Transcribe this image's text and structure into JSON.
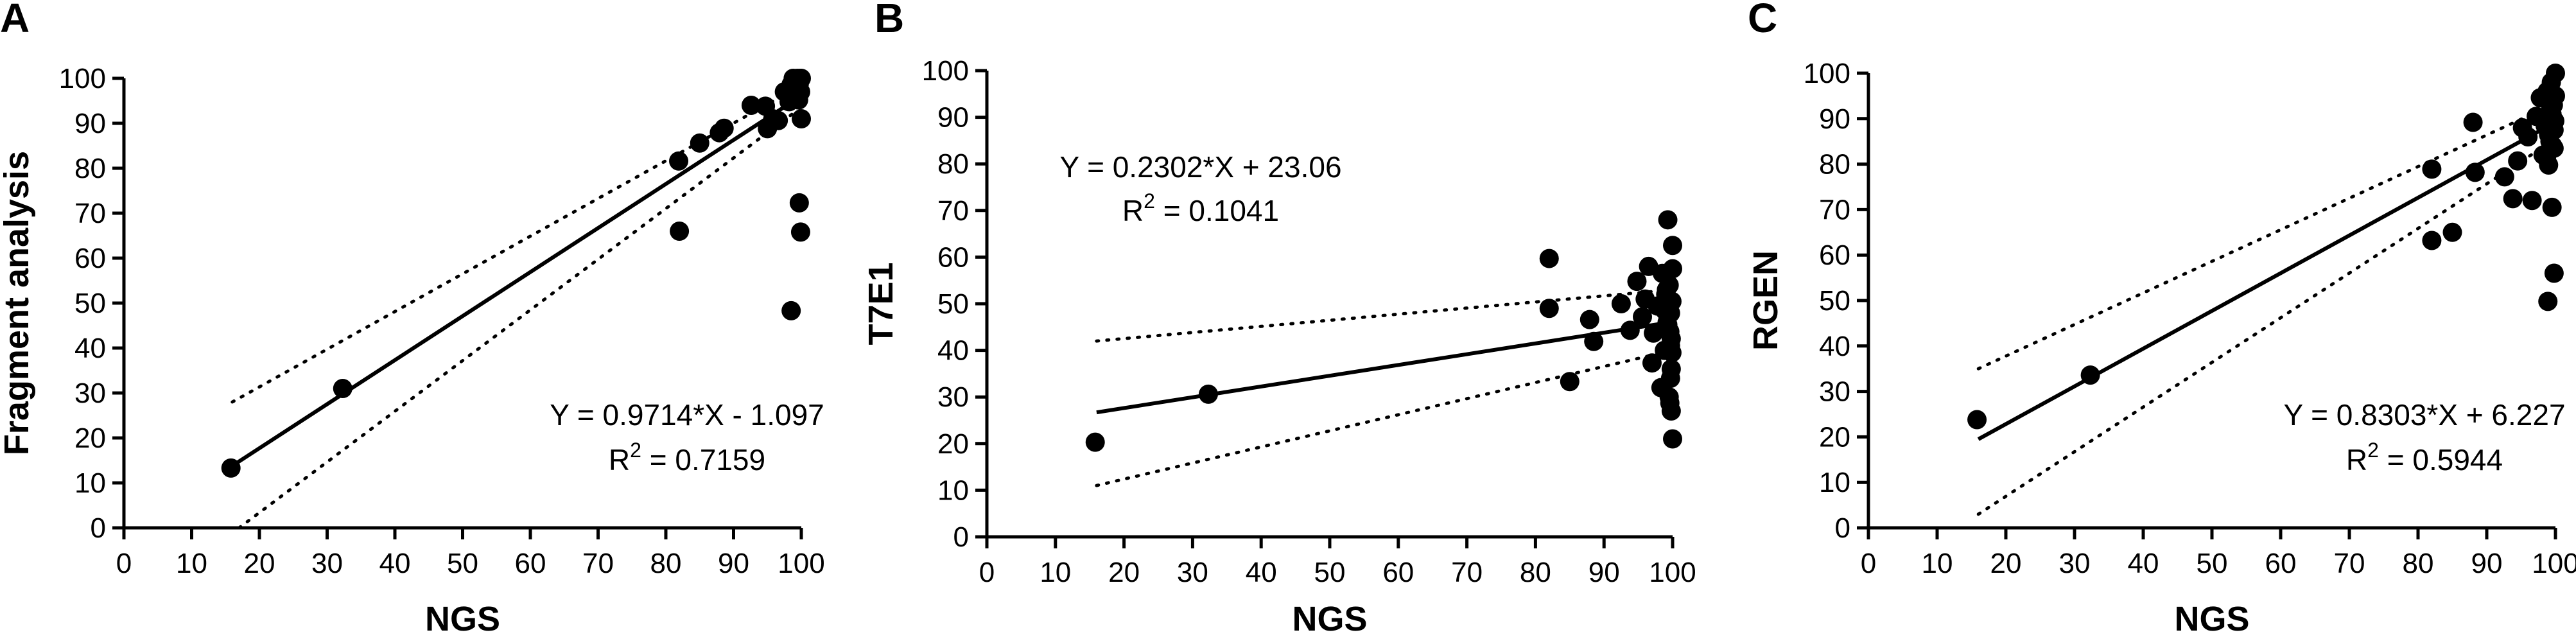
{
  "chart_data": [
    {
      "type": "scatter",
      "panel_label": "A",
      "title": "",
      "xlabel": "NGS",
      "ylabel": "Fragment analysis",
      "xlim": [
        0,
        100
      ],
      "ylim": [
        0,
        100
      ],
      "x_ticks": [
        0,
        10,
        20,
        30,
        40,
        50,
        60,
        70,
        80,
        90,
        100
      ],
      "y_ticks": [
        0,
        10,
        20,
        30,
        40,
        50,
        60,
        70,
        80,
        90,
        100
      ],
      "grid": false,
      "equation": "Y = 0.9714*X - 1.097",
      "r2_prefix": "R",
      "r2_sup": "2",
      "r2_value": " = 0.7159",
      "fit": {
        "x": [
          16,
          99.5
        ],
        "y": [
          13.8,
          95.6
        ]
      },
      "ci_upper": {
        "x": [
          16,
          99.5
        ],
        "y": [
          28,
          98
        ]
      },
      "ci_lower": {
        "x": [
          17,
          99.5
        ],
        "y": [
          0,
          93
        ]
      },
      "points": {
        "x": [
          15.8,
          32.3,
          81.9,
          82.0,
          85.0,
          87.9,
          88.6,
          92.6,
          94.7,
          95.0,
          95.8,
          96.6,
          97.5,
          98.2,
          98.5,
          98.8,
          99.0,
          99.1,
          99.3,
          99.4,
          99.6,
          99.7,
          99.8,
          99.9,
          100.0,
          100.0,
          99.7,
          99.9,
          98.5
        ],
        "y": [
          13.3,
          31.0,
          81.6,
          66.0,
          85.6,
          87.9,
          88.9,
          94.0,
          93.8,
          88.8,
          91.0,
          90.6,
          97.0,
          94.8,
          98.6,
          100.0,
          96.2,
          99.5,
          97.8,
          100.0,
          95.2,
          98.8,
          100.0,
          97.0,
          100.0,
          91.0,
          72.3,
          65.8,
          48.3
        ]
      }
    },
    {
      "type": "scatter",
      "panel_label": "B",
      "title": "",
      "xlabel": "NGS",
      "ylabel": "T7E1",
      "xlim": [
        0,
        100
      ],
      "ylim": [
        0,
        100
      ],
      "x_ticks": [
        0,
        10,
        20,
        30,
        40,
        50,
        60,
        70,
        80,
        90,
        100
      ],
      "y_ticks": [
        0,
        10,
        20,
        30,
        40,
        50,
        60,
        70,
        80,
        90,
        100
      ],
      "grid": false,
      "equation": "Y = 0.2302*X + 23.06",
      "r2_prefix": "R",
      "r2_sup": "2",
      "r2_value": " = 0.1041",
      "fit": {
        "x": [
          16,
          100
        ],
        "y": [
          26.7,
          46.1
        ]
      },
      "ci_upper": {
        "x": [
          16,
          100
        ],
        "y": [
          42,
          53
        ]
      },
      "ci_lower": {
        "x": [
          16,
          100
        ],
        "y": [
          11,
          40
        ]
      },
      "points": {
        "x": [
          15.8,
          32.3,
          82.0,
          82.0,
          85.0,
          87.9,
          88.5,
          92.5,
          93.8,
          94.8,
          95.6,
          96.0,
          96.5,
          97.0,
          97.2,
          97.8,
          98.3,
          98.5,
          98.8,
          99.0,
          99.2,
          99.3,
          99.5,
          99.6,
          99.7,
          99.8,
          99.9,
          100.0,
          100.0,
          99.9,
          99.8,
          99.7,
          99.5,
          99.3,
          99.1,
          98.9,
          99.6,
          99.8,
          100.0,
          99.7
        ],
        "y": [
          20.3,
          30.6,
          59.7,
          49.0,
          33.3,
          46.6,
          41.9,
          50.0,
          44.3,
          54.8,
          47.2,
          51.0,
          58.0,
          37.3,
          43.7,
          49.5,
          32.0,
          56.5,
          40.0,
          52.0,
          46.0,
          68.0,
          54.0,
          44.0,
          48.0,
          36.0,
          39.5,
          62.5,
          57.5,
          50.5,
          42.5,
          34.0,
          30.0,
          45.5,
          53.0,
          48.5,
          28.7,
          27.0,
          21.0,
          41.0
        ]
      }
    },
    {
      "type": "scatter",
      "panel_label": "C",
      "title": "",
      "xlabel": "NGS",
      "ylabel": "RGEN",
      "xlim": [
        0,
        100
      ],
      "ylim": [
        0,
        100
      ],
      "x_ticks": [
        0,
        10,
        20,
        30,
        40,
        50,
        60,
        70,
        80,
        90,
        100
      ],
      "y_ticks": [
        0,
        10,
        20,
        30,
        40,
        50,
        60,
        70,
        80,
        90,
        100
      ],
      "grid": false,
      "equation": "Y = 0.8303*X + 6.227",
      "r2_prefix": "R",
      "r2_sup": "2",
      "r2_value": " = 0.5944",
      "fit": {
        "x": [
          16,
          99.5
        ],
        "y": [
          19.5,
          88.8
        ]
      },
      "ci_upper": {
        "x": [
          16,
          99.5
        ],
        "y": [
          35,
          93
        ]
      },
      "ci_lower": {
        "x": [
          16,
          99.5
        ],
        "y": [
          3,
          85
        ]
      },
      "points": {
        "x": [
          15.8,
          32.3,
          82.0,
          82.0,
          85.0,
          88.0,
          88.3,
          92.6,
          93.8,
          94.5,
          95.2,
          96.0,
          96.6,
          97.2,
          97.8,
          98.2,
          98.5,
          98.8,
          99.0,
          99.2,
          99.4,
          99.5,
          99.7,
          99.8,
          100.0,
          100.0,
          99.9,
          99.8,
          99.6,
          99.3,
          99.0,
          98.7,
          99.5,
          99.8,
          98.9
        ],
        "y": [
          23.8,
          33.6,
          78.9,
          63.2,
          65.0,
          89.2,
          78.2,
          77.2,
          72.4,
          80.7,
          88.0,
          86.0,
          72.0,
          90.5,
          94.6,
          82.0,
          88.5,
          96.0,
          79.8,
          85.0,
          98.0,
          91.0,
          93.0,
          87.5,
          100.0,
          95.0,
          89.5,
          83.5,
          84.0,
          92.0,
          86.5,
          81.5,
          70.5,
          56.0,
          49.8
        ]
      }
    }
  ]
}
